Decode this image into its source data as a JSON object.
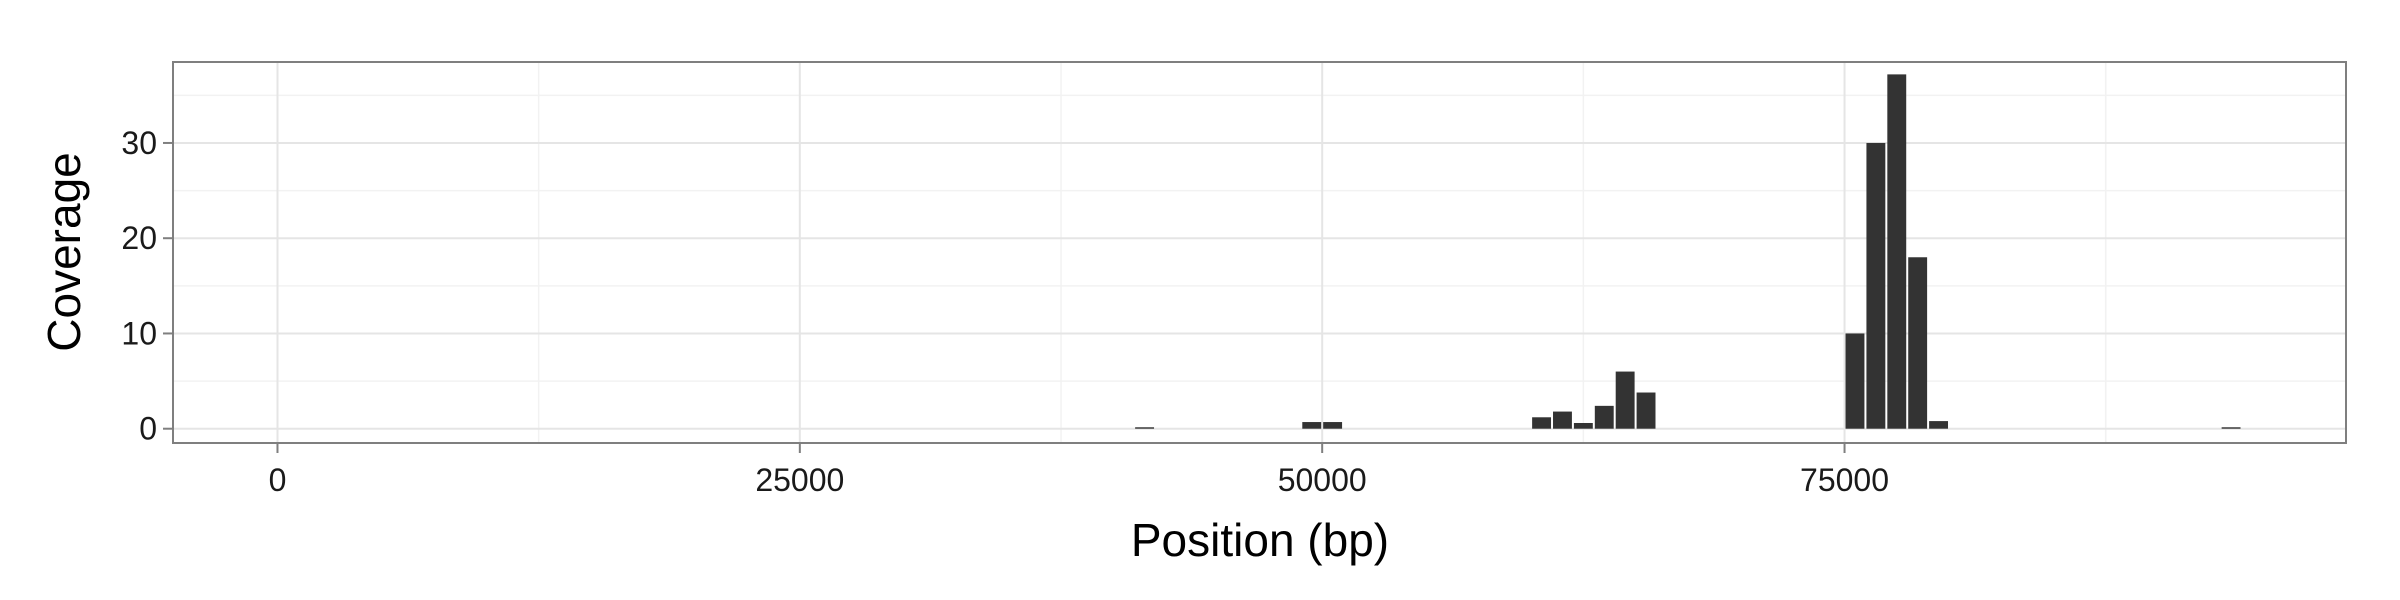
{
  "chart_data": {
    "type": "bar",
    "title": "",
    "xlabel": "Position (bp)",
    "ylabel": "Coverage",
    "xlim": [
      -5000,
      99000
    ],
    "ylim": [
      -1.5,
      38.5
    ],
    "x_ticks": [
      0,
      25000,
      50000,
      75000
    ],
    "y_ticks": [
      0,
      10,
      20,
      30
    ],
    "bin_width": 1000,
    "grid": true,
    "legend": "none",
    "series": [
      {
        "x": [
          41500,
          49500,
          50500,
          60500,
          61500,
          62500,
          63500,
          64500,
          65500,
          75500,
          76500,
          77500,
          78500,
          79500,
          93500
        ],
        "values": [
          0.15,
          0.7,
          0.7,
          1.2,
          1.8,
          0.6,
          2.4,
          6.0,
          3.8,
          10.0,
          30.0,
          37.2,
          18.0,
          0.8,
          0.15
        ]
      }
    ],
    "colors": {
      "bar": "#333333",
      "panel_border": "#7f7f7f",
      "grid_major": "#e5e5e5",
      "grid_minor": "#f2f2f2",
      "background": "#ffffff"
    }
  }
}
